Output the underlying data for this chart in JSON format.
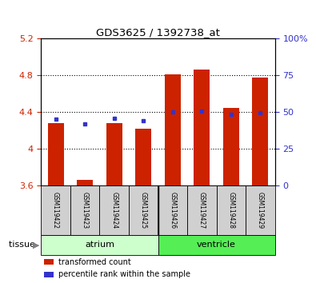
{
  "title": "GDS3625 / 1392738_at",
  "samples": [
    "GSM119422",
    "GSM119423",
    "GSM119424",
    "GSM119425",
    "GSM119426",
    "GSM119427",
    "GSM119428",
    "GSM119429"
  ],
  "red_values": [
    4.28,
    3.66,
    4.28,
    4.22,
    4.81,
    4.86,
    4.44,
    4.77
  ],
  "blue_values": [
    4.32,
    4.27,
    4.33,
    4.3,
    4.4,
    4.41,
    4.37,
    4.39
  ],
  "ylim": [
    3.6,
    5.2
  ],
  "yticks_left": [
    3.6,
    4.0,
    4.4,
    4.8,
    5.2
  ],
  "ytick_labels_left": [
    "3.6",
    "4",
    "4.4",
    "4.8",
    "5.2"
  ],
  "yticks_right_pct": [
    0,
    25,
    50,
    75,
    100
  ],
  "ytick_labels_right": [
    "0",
    "25",
    "50",
    "75",
    "100%"
  ],
  "bar_bottom": 3.6,
  "bar_color": "#cc2200",
  "dot_color": "#3333cc",
  "tissue_groups": [
    {
      "label": "atrium",
      "start": 0,
      "end": 4,
      "color": "#ccffcc"
    },
    {
      "label": "ventricle",
      "start": 4,
      "end": 8,
      "color": "#55ee55"
    }
  ],
  "legend_items": [
    {
      "label": "transformed count",
      "color": "#cc2200"
    },
    {
      "label": "percentile rank within the sample",
      "color": "#3333cc"
    }
  ],
  "tissue_label": "tissue",
  "ylabel_left_color": "#cc2200",
  "ylabel_right_color": "#3333cc",
  "grid_yticks": [
    4.0,
    4.4,
    4.8
  ],
  "sample_box_color": "#d0d0d0"
}
